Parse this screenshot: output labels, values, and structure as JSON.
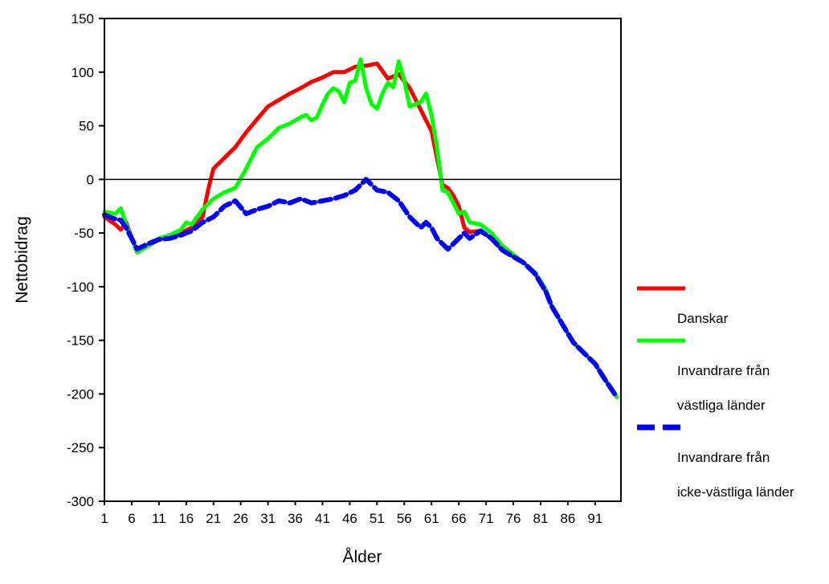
{
  "chart_data": {
    "type": "line",
    "xlabel": "Ålder",
    "ylabel": "Nettobidrag",
    "ylim": [
      -300,
      150
    ],
    "xlim": [
      1,
      95
    ],
    "yticks": [
      150,
      100,
      50,
      0,
      -50,
      -100,
      -150,
      -200,
      -250,
      -300
    ],
    "xticks": [
      1,
      6,
      11,
      16,
      21,
      26,
      31,
      36,
      41,
      46,
      51,
      56,
      61,
      66,
      71,
      76,
      81,
      86,
      91
    ],
    "zero_line": true,
    "grid": false,
    "legend_position": "right",
    "series": [
      {
        "name": "Danskar",
        "color": "#ff0000",
        "style": "solid",
        "points": [
          [
            1,
            -35
          ],
          [
            3,
            -42
          ],
          [
            4,
            -47
          ],
          [
            5,
            -40
          ],
          [
            7,
            -68
          ],
          [
            9,
            -62
          ],
          [
            11,
            -56
          ],
          [
            13,
            -53
          ],
          [
            15,
            -50
          ],
          [
            17,
            -45
          ],
          [
            19,
            -35
          ],
          [
            20,
            -10
          ],
          [
            21,
            10
          ],
          [
            23,
            20
          ],
          [
            25,
            30
          ],
          [
            27,
            44
          ],
          [
            29,
            56
          ],
          [
            31,
            68
          ],
          [
            33,
            74
          ],
          [
            35,
            80
          ],
          [
            37,
            85
          ],
          [
            39,
            91
          ],
          [
            41,
            95
          ],
          [
            43,
            100
          ],
          [
            45,
            100
          ],
          [
            47,
            105
          ],
          [
            49,
            106
          ],
          [
            51,
            108
          ],
          [
            53,
            94
          ],
          [
            55,
            98
          ],
          [
            57,
            85
          ],
          [
            59,
            65
          ],
          [
            61,
            45
          ],
          [
            62,
            20
          ],
          [
            63,
            -5
          ],
          [
            64,
            -8
          ],
          [
            65,
            -15
          ],
          [
            66,
            -25
          ],
          [
            67,
            -45
          ],
          [
            68,
            -49
          ],
          [
            70,
            -48
          ],
          [
            72,
            -55
          ],
          [
            74,
            -66
          ],
          [
            76,
            -72
          ],
          [
            78,
            -78
          ],
          [
            80,
            -88
          ],
          [
            82,
            -105
          ],
          [
            83,
            -118
          ],
          [
            85,
            -135
          ],
          [
            87,
            -152
          ],
          [
            89,
            -162
          ],
          [
            91,
            -172
          ],
          [
            93,
            -188
          ],
          [
            95,
            -203
          ]
        ]
      },
      {
        "name": "Invandrare från västliga länder",
        "color": "#00ff00",
        "style": "solid",
        "points": [
          [
            1,
            -30
          ],
          [
            3,
            -32
          ],
          [
            4,
            -27
          ],
          [
            5,
            -42
          ],
          [
            7,
            -68
          ],
          [
            9,
            -62
          ],
          [
            11,
            -55
          ],
          [
            13,
            -52
          ],
          [
            15,
            -47
          ],
          [
            16,
            -40
          ],
          [
            17,
            -42
          ],
          [
            19,
            -28
          ],
          [
            21,
            -18
          ],
          [
            23,
            -12
          ],
          [
            25,
            -8
          ],
          [
            27,
            10
          ],
          [
            29,
            30
          ],
          [
            31,
            38
          ],
          [
            33,
            48
          ],
          [
            35,
            52
          ],
          [
            37,
            58
          ],
          [
            38,
            60
          ],
          [
            39,
            55
          ],
          [
            40,
            58
          ],
          [
            41,
            70
          ],
          [
            42,
            80
          ],
          [
            43,
            85
          ],
          [
            44,
            82
          ],
          [
            45,
            72
          ],
          [
            46,
            90
          ],
          [
            47,
            92
          ],
          [
            48,
            112
          ],
          [
            49,
            85
          ],
          [
            50,
            70
          ],
          [
            51,
            66
          ],
          [
            52,
            80
          ],
          [
            53,
            90
          ],
          [
            54,
            86
          ],
          [
            55,
            110
          ],
          [
            56,
            92
          ],
          [
            57,
            68
          ],
          [
            59,
            72
          ],
          [
            60,
            80
          ],
          [
            61,
            60
          ],
          [
            62,
            30
          ],
          [
            63,
            -10
          ],
          [
            64,
            -12
          ],
          [
            65,
            -22
          ],
          [
            66,
            -32
          ],
          [
            67,
            -30
          ],
          [
            68,
            -40
          ],
          [
            70,
            -42
          ],
          [
            72,
            -50
          ],
          [
            74,
            -62
          ],
          [
            76,
            -70
          ],
          [
            78,
            -78
          ],
          [
            80,
            -87
          ],
          [
            82,
            -103
          ],
          [
            83,
            -118
          ],
          [
            85,
            -135
          ],
          [
            87,
            -152
          ],
          [
            89,
            -162
          ],
          [
            91,
            -172
          ],
          [
            93,
            -188
          ],
          [
            95,
            -203
          ]
        ]
      },
      {
        "name": "Invandrare från icke-västliga länder",
        "color": "#0000ff",
        "style": "dashed",
        "points": [
          [
            1,
            -33
          ],
          [
            3,
            -37
          ],
          [
            4,
            -38
          ],
          [
            5,
            -45
          ],
          [
            7,
            -65
          ],
          [
            9,
            -60
          ],
          [
            11,
            -56
          ],
          [
            13,
            -55
          ],
          [
            15,
            -52
          ],
          [
            17,
            -48
          ],
          [
            19,
            -40
          ],
          [
            21,
            -35
          ],
          [
            23,
            -25
          ],
          [
            25,
            -20
          ],
          [
            27,
            -32
          ],
          [
            29,
            -28
          ],
          [
            31,
            -25
          ],
          [
            33,
            -20
          ],
          [
            35,
            -22
          ],
          [
            37,
            -18
          ],
          [
            39,
            -22
          ],
          [
            41,
            -20
          ],
          [
            43,
            -18
          ],
          [
            45,
            -15
          ],
          [
            47,
            -10
          ],
          [
            49,
            0
          ],
          [
            51,
            -10
          ],
          [
            53,
            -12
          ],
          [
            55,
            -20
          ],
          [
            57,
            -35
          ],
          [
            59,
            -45
          ],
          [
            60,
            -40
          ],
          [
            61,
            -45
          ],
          [
            62,
            -55
          ],
          [
            63,
            -60
          ],
          [
            64,
            -65
          ],
          [
            65,
            -60
          ],
          [
            66,
            -55
          ],
          [
            67,
            -50
          ],
          [
            68,
            -55
          ],
          [
            70,
            -48
          ],
          [
            72,
            -55
          ],
          [
            74,
            -66
          ],
          [
            76,
            -72
          ],
          [
            78,
            -78
          ],
          [
            80,
            -88
          ],
          [
            82,
            -105
          ],
          [
            83,
            -118
          ],
          [
            85,
            -135
          ],
          [
            87,
            -152
          ],
          [
            89,
            -162
          ],
          [
            91,
            -172
          ],
          [
            93,
            -188
          ],
          [
            95,
            -203
          ]
        ]
      }
    ]
  }
}
